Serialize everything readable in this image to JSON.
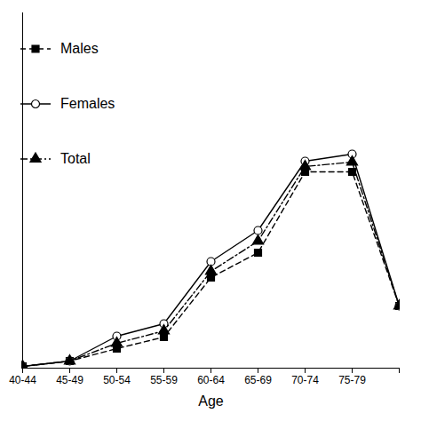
{
  "chart_data": {
    "type": "line",
    "x_label": "Age",
    "categories": [
      "40-44",
      "45-49",
      "50-54",
      "55-59",
      "60-64",
      "65-69",
      "70-74",
      "75-79",
      null
    ],
    "series": [
      {
        "name": "Males",
        "color": "#000000",
        "marker": "square",
        "line_style": "dashed",
        "values": [
          2,
          8,
          22,
          35,
          102,
          130,
          221,
          221,
          70
        ]
      },
      {
        "name": "Females",
        "color": "#000000",
        "marker": "circle_open",
        "line_style": "solid",
        "values": [
          2,
          8,
          36,
          50,
          120,
          155,
          233,
          241,
          70
        ]
      },
      {
        "name": "Total",
        "color": "#000000",
        "marker": "triangle",
        "line_style": "dashdot",
        "values": [
          2,
          8,
          28,
          42,
          109,
          143,
          227,
          232,
          70
        ]
      }
    ],
    "ylim": [
      0,
      400
    ],
    "yticks": [],
    "tick_labels": "x",
    "legend": "top-left",
    "grid": false
  }
}
